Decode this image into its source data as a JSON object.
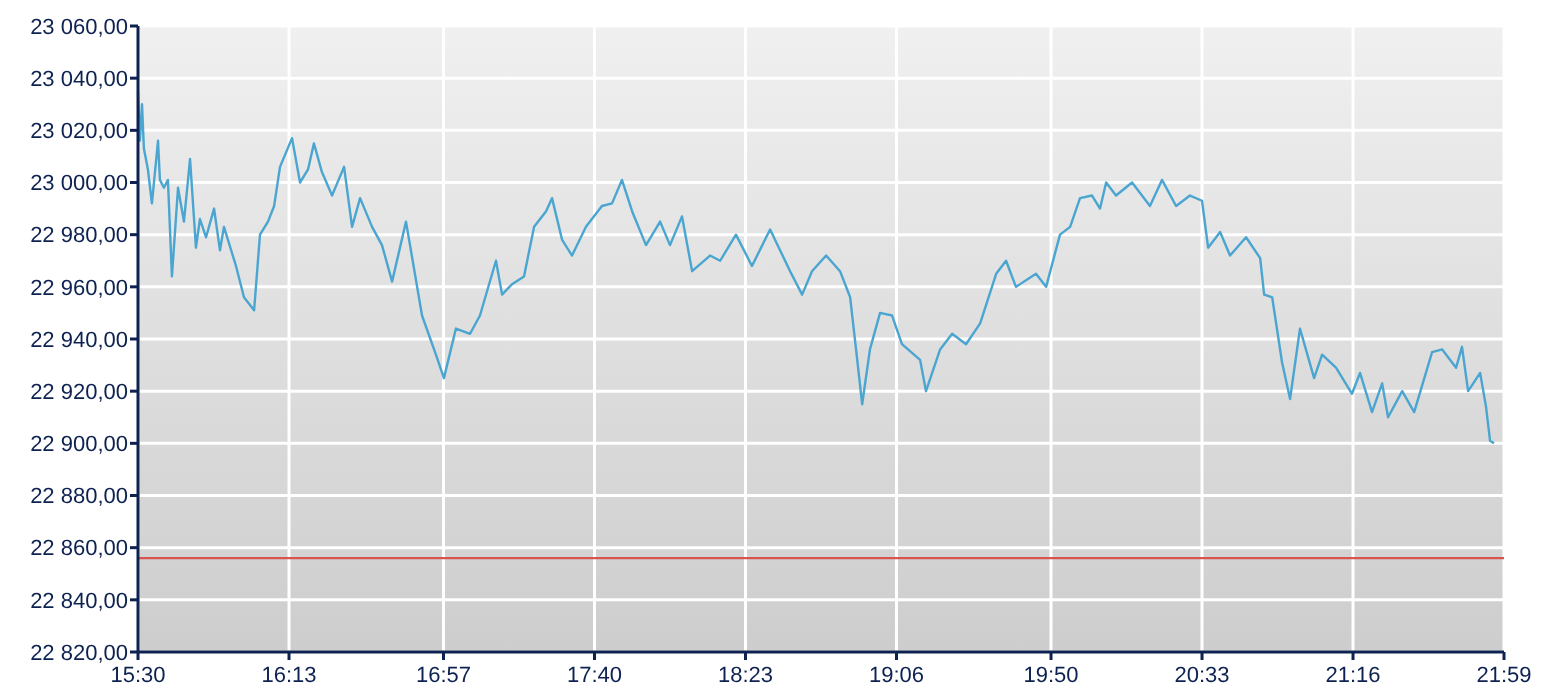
{
  "chart_data": {
    "type": "line",
    "xlim": [
      15.5,
      21.9833
    ],
    "ylim": [
      22820,
      23060
    ],
    "xticks": [
      {
        "value": 15.5,
        "label": "15:30"
      },
      {
        "value": 16.2167,
        "label": "16:13"
      },
      {
        "value": 16.95,
        "label": "16:57"
      },
      {
        "value": 17.6667,
        "label": "17:40"
      },
      {
        "value": 18.3833,
        "label": "18:23"
      },
      {
        "value": 19.1,
        "label": "19:06"
      },
      {
        "value": 19.8333,
        "label": "19:50"
      },
      {
        "value": 20.55,
        "label": "20:33"
      },
      {
        "value": 21.2667,
        "label": "21:16"
      },
      {
        "value": 21.9833,
        "label": "21:59"
      }
    ],
    "yticks": [
      {
        "value": 22820,
        "label": "22 820,00"
      },
      {
        "value": 22840,
        "label": "22 840,00"
      },
      {
        "value": 22860,
        "label": "22 860,00"
      },
      {
        "value": 22880,
        "label": "22 880,00"
      },
      {
        "value": 22900,
        "label": "22 900,00"
      },
      {
        "value": 22920,
        "label": "22 920,00"
      },
      {
        "value": 22940,
        "label": "22 940,00"
      },
      {
        "value": 22960,
        "label": "22 960,00"
      },
      {
        "value": 22980,
        "label": "22 980,00"
      },
      {
        "value": 23000,
        "label": "23 000,00"
      },
      {
        "value": 23020,
        "label": "23 020,00"
      },
      {
        "value": 23040,
        "label": "23 040,00"
      },
      {
        "value": 23060,
        "label": "23 060,00"
      }
    ],
    "grid": true,
    "marker": "none",
    "line_style": "solid",
    "ref_lines": [
      {
        "axis": "y",
        "value": 22856,
        "color": "#d9534f"
      }
    ],
    "series": [
      {
        "color": "#4aa5d0",
        "x": [
          15.5,
          15.509,
          15.519,
          15.528,
          15.547,
          15.566,
          15.595,
          15.604,
          15.623,
          15.642,
          15.661,
          15.69,
          15.718,
          15.747,
          15.775,
          15.794,
          15.823,
          15.861,
          15.889,
          15.908,
          15.965,
          16.003,
          16.051,
          16.079,
          16.117,
          16.146,
          16.174,
          16.231,
          16.269,
          16.307,
          16.335,
          16.373,
          16.421,
          16.478,
          16.516,
          16.554,
          16.611,
          16.658,
          16.706,
          16.772,
          16.848,
          16.914,
          16.952,
          17.009,
          17.076,
          17.123,
          17.199,
          17.228,
          17.275,
          17.332,
          17.38,
          17.437,
          17.465,
          17.513,
          17.56,
          17.626,
          17.702,
          17.75,
          17.797,
          17.845,
          17.911,
          17.978,
          18.025,
          18.082,
          18.13,
          18.215,
          18.263,
          18.338,
          18.414,
          18.5,
          18.595,
          18.652,
          18.699,
          18.766,
          18.832,
          18.88,
          18.908,
          18.937,
          18.974,
          19.022,
          19.079,
          19.126,
          19.212,
          19.24,
          19.307,
          19.364,
          19.43,
          19.497,
          19.573,
          19.62,
          19.667,
          19.762,
          19.81,
          19.876,
          19.924,
          19.971,
          20.028,
          20.066,
          20.095,
          20.142,
          20.218,
          20.303,
          20.36,
          20.427,
          20.493,
          20.55,
          20.579,
          20.636,
          20.683,
          20.759,
          20.826,
          20.845,
          20.883,
          20.93,
          20.968,
          21.015,
          21.082,
          21.12,
          21.186,
          21.262,
          21.3,
          21.357,
          21.405,
          21.433,
          21.5,
          21.557,
          21.642,
          21.69,
          21.756,
          21.784,
          21.813,
          21.87,
          21.898,
          21.917,
          21.936
        ],
        "values": [
          23035,
          23016,
          23030,
          23013,
          23005,
          22992,
          23016,
          23001,
          22998,
          23001,
          22964,
          22998,
          22985,
          23009,
          22975,
          22986,
          22979,
          22990,
          22974,
          22983,
          22968,
          22956,
          22951,
          22980,
          22985,
          22991,
          23006,
          23017,
          23000,
          23005,
          23015,
          23004,
          22995,
          23006,
          22983,
          22994,
          22983,
          22976,
          22962,
          22985,
          22949,
          22934,
          22925,
          22944,
          22942,
          22949,
          22970,
          22957,
          22961,
          22964,
          22983,
          22989,
          22994,
          22978,
          22972,
          22983,
          22991,
          22992,
          23001,
          22989,
          22976,
          22985,
          22976,
          22987,
          22966,
          22972,
          22970,
          22980,
          22968,
          22982,
          22966,
          22957,
          22966,
          22972,
          22966,
          22956,
          22936,
          22915,
          22936,
          22950,
          22949,
          22938,
          22932,
          22920,
          22936,
          22942,
          22938,
          22946,
          22965,
          22970,
          22960,
          22965,
          22960,
          22980,
          22983,
          22994,
          22995,
          22990,
          23000,
          22995,
          23000,
          22991,
          23001,
          22991,
          22995,
          22993,
          22975,
          22981,
          22972,
          22979,
          22971,
          22957,
          22956,
          22931,
          22917,
          22944,
          22925,
          22934,
          22929,
          22919,
          22927,
          22912,
          22923,
          22910,
          22920,
          22912,
          22935,
          22936,
          22929,
          22937,
          22920,
          22927,
          22914,
          22901,
          22900
        ]
      }
    ]
  }
}
